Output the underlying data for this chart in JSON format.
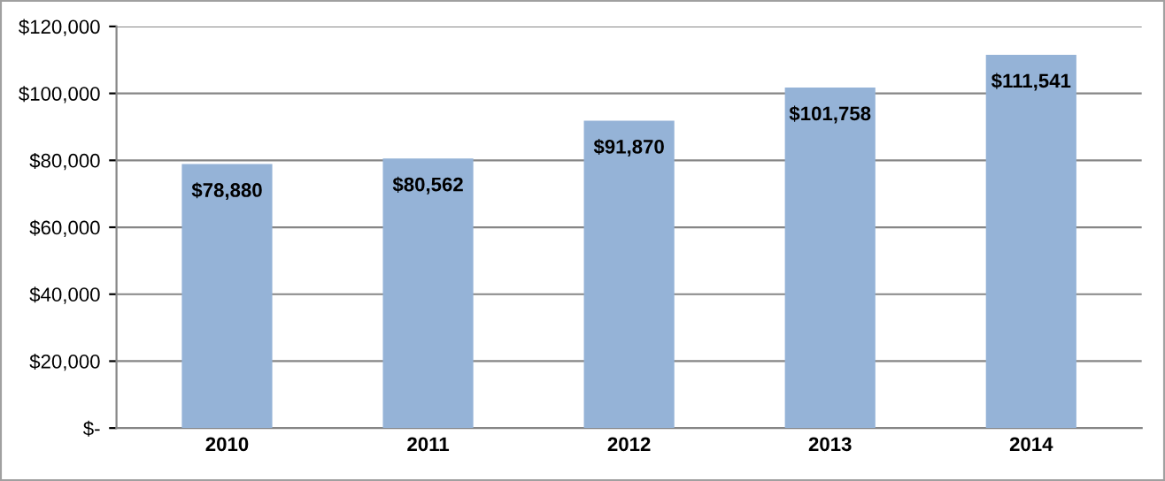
{
  "chart_data": {
    "type": "bar",
    "categories": [
      "2010",
      "2011",
      "2012",
      "2013",
      "2014"
    ],
    "values": [
      78880,
      80562,
      91870,
      101758,
      111541
    ],
    "value_labels": [
      "$78,880",
      "$80,562",
      "$91,870",
      "$101,758",
      "$111,541"
    ],
    "color": "#95b3d7",
    "ylim": [
      0,
      120000
    ],
    "yticks": [
      {
        "value": 0,
        "label": "$-"
      },
      {
        "value": 20000,
        "label": "$20,000"
      },
      {
        "value": 40000,
        "label": "$40,000"
      },
      {
        "value": 60000,
        "label": "$60,000"
      },
      {
        "value": 80000,
        "label": "$80,000"
      },
      {
        "value": 100000,
        "label": "$100,000"
      },
      {
        "value": 120000,
        "label": "$120,000"
      }
    ],
    "grid": "y",
    "legend": false
  }
}
